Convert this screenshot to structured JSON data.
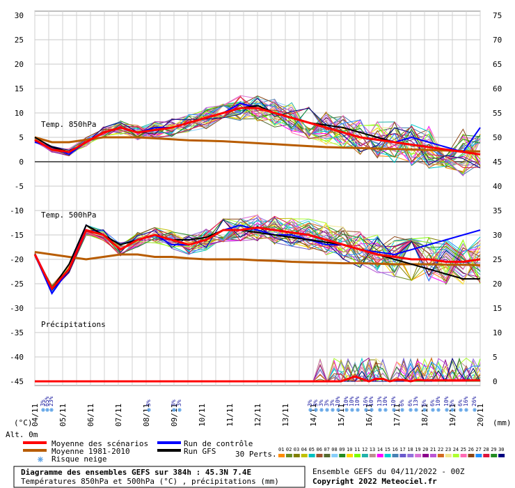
{
  "chart_data": {
    "type": "line",
    "left_axis": {
      "unit": "(°C)",
      "min": -45,
      "max": 30,
      "ticks": [
        30,
        25,
        20,
        15,
        10,
        5,
        0,
        -5,
        -10,
        -15,
        -20,
        -25,
        -30,
        -35,
        -40,
        -45
      ]
    },
    "right_axis": {
      "unit": "(mm)",
      "min": 0,
      "max": 75,
      "ticks": [
        75,
        70,
        65,
        60,
        55,
        50,
        45,
        40,
        35,
        30,
        25,
        20,
        15,
        10,
        5,
        0
      ]
    },
    "x": [
      "04/11",
      "05/11",
      "06/11",
      "07/11",
      "08/11",
      "09/11",
      "10/11",
      "11/11",
      "12/11",
      "13/11",
      "14/11",
      "15/11",
      "16/11",
      "17/11",
      "18/11",
      "19/11",
      "20/11"
    ],
    "grid": true,
    "panels": {
      "t850": "Temp. 850hPa",
      "t500": "Temp. 500hPa",
      "precip": "Précipitations"
    },
    "alt_label": "Alt. 0m",
    "series": [
      {
        "name": "Moyenne des scénarios",
        "color": "#ff0000",
        "width": 3,
        "t850": [
          4.5,
          2.5,
          2,
          4,
          6,
          7,
          6,
          6.5,
          7,
          8,
          9,
          10,
          11,
          11,
          10,
          9,
          8,
          7,
          6,
          5,
          4.5,
          4,
          3.5,
          3,
          2.5,
          2,
          1.5
        ],
        "t500": [
          -19,
          -26,
          -22,
          -14,
          -15,
          -18,
          -16,
          -15,
          -16,
          -17,
          -16,
          -14,
          -14,
          -13.5,
          -14,
          -14.5,
          -15,
          -16,
          -17,
          -18,
          -19,
          -19.5,
          -20,
          -20,
          -20.5,
          -20.5,
          -20
        ],
        "precip": [
          0,
          0,
          0,
          0,
          0,
          0,
          0,
          0,
          0,
          0,
          0,
          0,
          0,
          0,
          0,
          0,
          0,
          0,
          0,
          0,
          0,
          0,
          0,
          0,
          0,
          0,
          0,
          0,
          0,
          0,
          0,
          0,
          0,
          0,
          0,
          0,
          0,
          0,
          0,
          0,
          0,
          0,
          0,
          0,
          0,
          0.5,
          1,
          0.5,
          0,
          0.5,
          0.5,
          0,
          0.3,
          0.3,
          0,
          0.3,
          0.2,
          0.2,
          0.2,
          0.2,
          0.2,
          0.2,
          0.2,
          0.2,
          0.2
        ]
      },
      {
        "name": "Moyenne 1981-2010",
        "color": "#b85c00",
        "width": 3,
        "t850": [
          5,
          4,
          4,
          4.5,
          5,
          5,
          5,
          4.8,
          4.6,
          4.4,
          4.3,
          4.2,
          4,
          3.8,
          3.6,
          3.4,
          3.2,
          3,
          2.9,
          2.8,
          2.7,
          2.6,
          2.5,
          2.4,
          2.3,
          2.2,
          2.1
        ],
        "t500": [
          -18.5,
          -19,
          -19.5,
          -20,
          -19.5,
          -19,
          -19,
          -19.5,
          -19.5,
          -19.8,
          -20,
          -20,
          -20,
          -20.2,
          -20.3,
          -20.5,
          -20.6,
          -20.7,
          -20.8,
          -20.8,
          -20.9,
          -21,
          -21,
          -21,
          -21.1,
          -21.1,
          -21.2
        ]
      },
      {
        "name": "Run de contrôle",
        "color": "#0000ff",
        "width": 2,
        "t850": [
          4,
          3,
          1.5,
          4,
          6,
          7,
          6,
          7,
          7,
          8,
          9,
          10,
          12,
          11,
          10,
          9,
          8,
          7,
          6,
          5,
          4.5,
          4,
          5,
          4,
          3,
          2,
          7
        ],
        "t500": [
          -19,
          -27,
          -22,
          -13,
          -15,
          -18,
          -16,
          -15,
          -17,
          -17,
          -16,
          -14,
          -13,
          -14,
          -15,
          -15,
          -16,
          -17,
          -17,
          -18,
          -18.5,
          -19,
          -18,
          -17,
          -16,
          -15,
          -14
        ]
      },
      {
        "name": "Run GFS",
        "color": "#000000",
        "width": 2,
        "t850": [
          5,
          3,
          2,
          4,
          6,
          7,
          6,
          6.5,
          7,
          8,
          9,
          10,
          11,
          11.5,
          10,
          9,
          8,
          7.5,
          7,
          6,
          5,
          4,
          3.5,
          3,
          2.5,
          2,
          1.5
        ],
        "t500": [
          -19,
          -26,
          -21,
          -13,
          -15,
          -17,
          -16,
          -15,
          -16,
          -16,
          -15.5,
          -14,
          -14,
          -14.5,
          -15,
          -15.5,
          -16,
          -16.5,
          -17,
          -18,
          -19,
          -20,
          -21,
          -22,
          -23,
          -24,
          -24
        ]
      }
    ],
    "snow_risk": [
      {
        "pos": 0.3,
        "label": "3%"
      },
      {
        "pos": 0.45,
        "label": "65%"
      },
      {
        "pos": 0.6,
        "label": "23%"
      },
      {
        "pos": 4.1,
        "label": "3%"
      },
      {
        "pos": 5.0,
        "label": "3%"
      },
      {
        "pos": 5.2,
        "label": "3%"
      },
      {
        "pos": 9.9,
        "label": "3%"
      },
      {
        "pos": 10.1,
        "label": "3%"
      },
      {
        "pos": 10.3,
        "label": "3%"
      },
      {
        "pos": 10.5,
        "label": "3%"
      },
      {
        "pos": 10.7,
        "label": "3%"
      },
      {
        "pos": 10.9,
        "label": "10%"
      },
      {
        "pos": 11.2,
        "label": "10%"
      },
      {
        "pos": 11.4,
        "label": "10%"
      },
      {
        "pos": 11.6,
        "label": "10%"
      },
      {
        "pos": 11.9,
        "label": "16%"
      },
      {
        "pos": 12.1,
        "label": "10%"
      },
      {
        "pos": 12.4,
        "label": "13%"
      },
      {
        "pos": 12.6,
        "label": "10%"
      },
      {
        "pos": 12.9,
        "label": "10%"
      },
      {
        "pos": 13.2,
        "label": "6%"
      },
      {
        "pos": 13.5,
        "label": "6%"
      },
      {
        "pos": 13.7,
        "label": "13%"
      },
      {
        "pos": 14.0,
        "label": "6%"
      },
      {
        "pos": 14.3,
        "label": "6%"
      },
      {
        "pos": 14.5,
        "label": "10%"
      },
      {
        "pos": 14.8,
        "label": "10%"
      },
      {
        "pos": 15.0,
        "label": "6%"
      },
      {
        "pos": 15.3,
        "label": "6%"
      },
      {
        "pos": 15.5,
        "label": "16%"
      },
      {
        "pos": 15.8,
        "label": "26%"
      }
    ]
  },
  "legend": {
    "mean": "Moyenne des scénarios",
    "clim": "Moyenne 1981-2010",
    "snow": "Risque neige",
    "control": "Run de contrôle",
    "gfs": "Run GFS",
    "perts": "30 Perts."
  },
  "members": [
    "01",
    "02",
    "03",
    "04",
    "05",
    "06",
    "07",
    "08",
    "09",
    "10",
    "11",
    "12",
    "13",
    "14",
    "15",
    "16",
    "17",
    "18",
    "19",
    "20",
    "21",
    "22",
    "23",
    "24",
    "25",
    "26",
    "27",
    "28",
    "29",
    "30"
  ],
  "member_colors": [
    "#ff8c00",
    "#6b8e23",
    "#808000",
    "#c0c000",
    "#00c0c0",
    "#a0522d",
    "#556b2f",
    "#87cefa",
    "#228b22",
    "#ffd700",
    "#7cfc00",
    "#20b2aa",
    "#bc8f8f",
    "#ff00ff",
    "#00ced1",
    "#4682b4",
    "#6a5acd",
    "#9370db",
    "#da70d6",
    "#8b008b",
    "#ba55d3",
    "#d2691e",
    "#f0e68c",
    "#adff2f",
    "#ff69b4",
    "#8b4513",
    "#1e90ff",
    "#dc143c",
    "#228b22",
    "#000080"
  ],
  "footer": {
    "title": "Diagramme des ensembles GEFS sur 384h : 45.3N 7.4E",
    "subtitle": "Températures 850hPa et 500hPa (°C) , précipitations (mm)",
    "run": "Ensemble GEFS du 04/11/2022 - 00Z",
    "copyright": "Copyright 2022 Meteociel.fr"
  }
}
